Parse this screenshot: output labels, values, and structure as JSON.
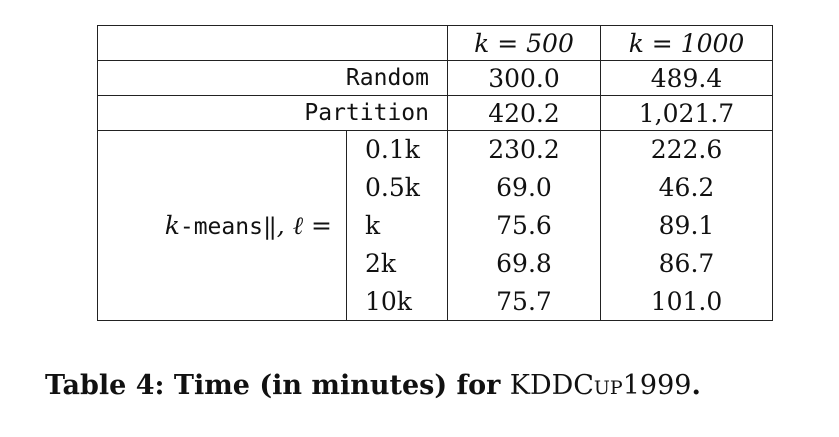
{
  "table": {
    "header": [
      "k = 500",
      "k = 1000"
    ],
    "rows": [
      {
        "label": "Random",
        "values": [
          "300.0",
          "489.4"
        ]
      },
      {
        "label": "Partition",
        "values": [
          "420.2",
          "1,021.7"
        ]
      }
    ],
    "group": {
      "label_k": "k",
      "label_method": "-means‖",
      "label_ell": ", ℓ =",
      "params": [
        "0.1k",
        "0.5k",
        "k",
        "2k",
        "10k"
      ],
      "values": [
        [
          "230.2",
          "222.6"
        ],
        [
          "69.0",
          "46.2"
        ],
        [
          "75.6",
          "89.1"
        ],
        [
          "69.8",
          "86.7"
        ],
        [
          "75.7",
          "101.0"
        ]
      ]
    }
  },
  "caption": {
    "prefix": "Table 4: Time (in minutes) for",
    "dataset": "KDDCup1999",
    "suffix": "."
  }
}
